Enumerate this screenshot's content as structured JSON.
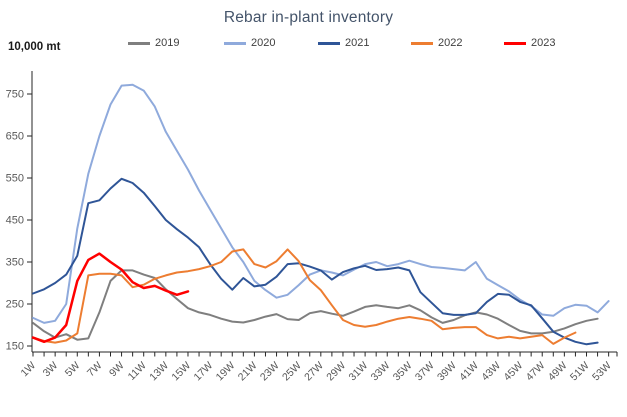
{
  "title": "Rebar in-plant inventory",
  "y_axis_unit_label": "10,000 mt",
  "chart_data": {
    "type": "line",
    "title": "Rebar in-plant inventory",
    "x_unit": "week of year",
    "y_unit": "10,000 mt",
    "ylim": [
      150,
      790
    ],
    "y_ticks": [
      150,
      250,
      350,
      450,
      550,
      650,
      750
    ],
    "x_tick_labels": [
      "1W",
      "3W",
      "5W",
      "7W",
      "9W",
      "11W",
      "13W",
      "15W",
      "17W",
      "19W",
      "21W",
      "23W",
      "25W",
      "27W",
      "29W",
      "31W",
      "33W",
      "35W",
      "37W",
      "39W",
      "41W",
      "43W",
      "45W",
      "47W",
      "49W",
      "51W",
      "53W"
    ],
    "x_weeks_range": [
      1,
      53
    ],
    "grid": false,
    "legend_position": "top",
    "axis_color": "#262626",
    "tick_label_color": "#595959",
    "title_color": "#44546A",
    "series": [
      {
        "name": "2019",
        "color": "#7F7F7F",
        "start_week": 1,
        "values": [
          205,
          185,
          170,
          178,
          165,
          168,
          230,
          305,
          330,
          330,
          320,
          312,
          285,
          262,
          240,
          230,
          224,
          215,
          208,
          206,
          212,
          220,
          226,
          214,
          212,
          228,
          233,
          227,
          222,
          232,
          243,
          247,
          243,
          240,
          247,
          235,
          218,
          205,
          212,
          223,
          230,
          225,
          215,
          200,
          186,
          180,
          180,
          184,
          192,
          202,
          210,
          215
        ]
      },
      {
        "name": "2020",
        "color": "#8FAADC",
        "start_week": 1,
        "values": [
          217,
          205,
          210,
          250,
          430,
          560,
          650,
          725,
          770,
          772,
          758,
          720,
          660,
          615,
          570,
          520,
          475,
          430,
          385,
          350,
          305,
          283,
          265,
          272,
          295,
          320,
          330,
          325,
          318,
          332,
          345,
          350,
          340,
          345,
          353,
          345,
          338,
          336,
          333,
          330,
          350,
          310,
          295,
          280,
          260,
          245,
          225,
          222,
          240,
          248,
          246,
          230,
          257
        ]
      },
      {
        "name": "2021",
        "color": "#2F5597",
        "start_week": 1,
        "values": [
          275,
          285,
          300,
          320,
          365,
          490,
          497,
          525,
          548,
          538,
          515,
          483,
          450,
          428,
          408,
          385,
          345,
          310,
          284,
          312,
          292,
          296,
          315,
          345,
          347,
          339,
          330,
          308,
          326,
          335,
          341,
          331,
          333,
          337,
          330,
          278,
          253,
          228,
          224,
          224,
          228,
          255,
          274,
          272,
          255,
          247,
          216,
          184,
          170,
          160,
          154,
          158
        ]
      },
      {
        "name": "2022",
        "color": "#ED7D31",
        "start_week": 1,
        "values": [
          170,
          162,
          158,
          163,
          180,
          318,
          322,
          322,
          318,
          290,
          296,
          310,
          318,
          325,
          328,
          333,
          340,
          350,
          375,
          380,
          345,
          337,
          352,
          380,
          352,
          307,
          283,
          247,
          212,
          200,
          196,
          200,
          208,
          215,
          219,
          215,
          210,
          190,
          193,
          195,
          195,
          176,
          168,
          172,
          168,
          172,
          176,
          155,
          170,
          182
        ]
      },
      {
        "name": "2023",
        "color": "#FF0000",
        "start_week": 1,
        "values": [
          170,
          160,
          170,
          200,
          305,
          355,
          370,
          350,
          332,
          302,
          288,
          293,
          282,
          272,
          280
        ]
      }
    ]
  }
}
